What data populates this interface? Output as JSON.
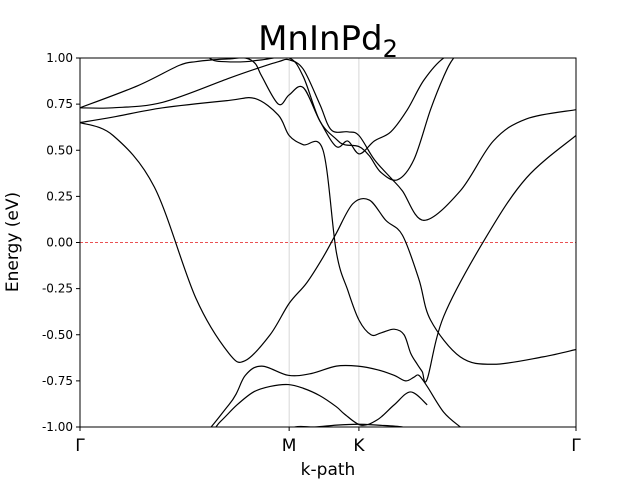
{
  "chart_data": {
    "type": "line",
    "title": "MnInPd",
    "title_subscript": "2",
    "xlabel": "k-path",
    "ylabel": "Energy (eV)",
    "ylim": [
      -1.0,
      1.0
    ],
    "y_ticks": [
      "-1.00",
      "-0.75",
      "-0.50",
      "-0.25",
      "0.00",
      "0.25",
      "0.50",
      "0.75",
      "1.00"
    ],
    "x_range": [
      0,
      3.0
    ],
    "high_symmetry_points": [
      {
        "label": "Γ",
        "x": 0.0
      },
      {
        "label": "M",
        "x": 1.265
      },
      {
        "label": "K",
        "x": 1.687
      },
      {
        "label": "Γ",
        "x": 3.0
      }
    ],
    "fermi_level": 0.0,
    "fermi_color": "#e41a1c",
    "band_color": "#000000",
    "vline_color": "#cccccc",
    "bands": [
      {
        "x": [
          0.0,
          0.3,
          0.6,
          0.9,
          1.06,
          1.2,
          1.32,
          1.46,
          1.58,
          1.7,
          1.85,
          2.0,
          2.1
        ],
        "y": [
          -1.12,
          -1.08,
          -1.04,
          -1.02,
          -1.01,
          -1.03,
          -1.05,
          -1.04,
          -1.02,
          -1.0,
          -1.01,
          -1.02,
          -1.06
        ]
      },
      {
        "x": [
          0.0,
          0.3,
          0.6,
          0.9,
          1.2,
          1.3,
          1.42,
          1.55,
          1.68,
          1.8,
          1.95,
          2.05
        ],
        "y": [
          -1.2,
          -1.18,
          -1.15,
          -1.12,
          -1.05,
          -1.0,
          -1.0,
          -0.99,
          -0.985,
          -0.99,
          -1.0,
          -1.03
        ]
      },
      {
        "x": [
          0.0,
          0.4,
          0.75,
          0.85,
          0.95,
          1.05,
          1.15,
          1.26,
          1.35,
          1.45,
          1.55,
          1.6,
          1.7,
          1.8,
          1.9,
          2.0,
          2.1
        ],
        "y": [
          -1.3,
          -1.18,
          -1.05,
          -0.97,
          -0.88,
          -0.81,
          -0.78,
          -0.77,
          -0.79,
          -0.83,
          -0.89,
          -0.93,
          -0.99,
          -0.96,
          -0.88,
          -0.81,
          -0.88
        ]
      },
      {
        "x": [
          0.0,
          0.6,
          0.9,
          1.0,
          1.1,
          1.26,
          1.4,
          1.55,
          1.68,
          1.8,
          1.9,
          1.97,
          2.02,
          2.05,
          2.1,
          2.2,
          2.3
        ],
        "y": [
          -1.35,
          -1.15,
          -0.88,
          -0.72,
          -0.67,
          -0.72,
          -0.71,
          -0.67,
          -0.67,
          -0.69,
          -0.72,
          -0.75,
          -0.73,
          -0.72,
          -0.78,
          -0.92,
          -1.0
        ]
      },
      {
        "x": [
          0.0,
          0.2,
          0.45,
          0.7,
          0.9,
          1.0,
          1.15,
          1.265,
          1.37,
          1.47,
          1.55,
          1.65,
          1.75,
          1.85,
          1.95,
          2.05,
          2.12,
          2.3,
          2.5,
          2.8,
          3.0
        ],
        "y": [
          0.65,
          0.58,
          0.3,
          -0.3,
          -0.6,
          -0.64,
          -0.5,
          -0.33,
          -0.22,
          -0.08,
          0.05,
          0.21,
          0.23,
          0.12,
          0.04,
          -0.2,
          -0.42,
          -0.62,
          -0.66,
          -0.62,
          -0.58
        ]
      },
      {
        "x": [
          0.0,
          0.2,
          0.5,
          0.9,
          1.06,
          1.2,
          1.265,
          1.35,
          1.47,
          1.55,
          1.62,
          1.687,
          1.76,
          1.82,
          1.9,
          1.96,
          2.0,
          2.04,
          2.07,
          2.1,
          2.2,
          2.45,
          2.7,
          3.0
        ],
        "y": [
          0.65,
          0.68,
          0.73,
          0.77,
          0.78,
          0.69,
          0.58,
          0.53,
          0.5,
          -0.05,
          -0.26,
          -0.42,
          -0.5,
          -0.49,
          -0.47,
          -0.5,
          -0.6,
          -0.66,
          -0.7,
          -0.74,
          -0.4,
          0.02,
          0.35,
          0.58
        ]
      },
      {
        "x": [
          0.0,
          0.2,
          0.5,
          0.9,
          1.06,
          1.2,
          1.265,
          1.35,
          1.45,
          1.52,
          1.62,
          1.687,
          1.78,
          1.88,
          1.95,
          2.08,
          2.3,
          2.5,
          2.7,
          3.0
        ],
        "y": [
          0.73,
          0.73,
          0.76,
          0.89,
          0.94,
          0.98,
          0.99,
          0.94,
          0.75,
          0.61,
          0.6,
          0.58,
          0.45,
          0.35,
          0.28,
          0.12,
          0.28,
          0.55,
          0.67,
          0.72
        ]
      },
      {
        "x": [
          0.0,
          0.35,
          0.6,
          0.7,
          0.8,
          0.9,
          1.0,
          1.06,
          1.1,
          1.2,
          1.265,
          1.35,
          1.45,
          1.55,
          1.62,
          1.69,
          1.78,
          1.88,
          1.98,
          2.08,
          2.2,
          2.35
        ],
        "y": [
          0.73,
          0.85,
          0.96,
          0.98,
          0.99,
          0.995,
          1.0,
          0.97,
          0.9,
          0.75,
          0.8,
          0.84,
          0.66,
          0.52,
          0.55,
          0.48,
          0.55,
          0.6,
          0.72,
          0.88,
          1.0,
          1.05
        ]
      },
      {
        "x": [
          0.72,
          0.8,
          0.88,
          1.0,
          1.1,
          1.265,
          1.35,
          1.45,
          1.55,
          1.6,
          1.687,
          1.75,
          1.82,
          1.92,
          2.02,
          2.12,
          2.2,
          2.26,
          2.35
        ],
        "y": [
          1.05,
          0.99,
          0.98,
          0.98,
          0.99,
          1.0,
          0.9,
          0.66,
          0.56,
          0.53,
          0.52,
          0.47,
          0.38,
          0.34,
          0.45,
          0.72,
          0.9,
          1.0,
          1.08
        ]
      }
    ]
  }
}
